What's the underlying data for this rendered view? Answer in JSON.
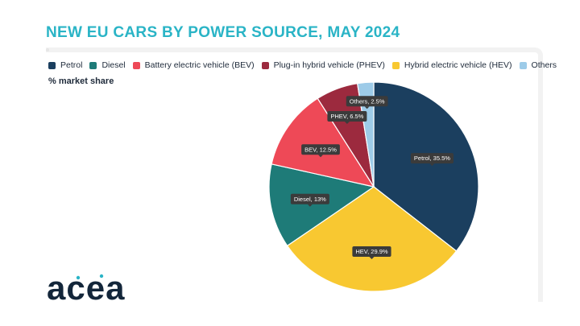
{
  "chart_data": {
    "type": "pie",
    "title": "NEW EU CARS BY POWER SOURCE, MAY 2024",
    "subtitle": "% market share",
    "unit": "%",
    "legend_position": "top",
    "slices": [
      {
        "name": "Petrol",
        "legend": "Petrol",
        "label": "Petrol, 35.5%",
        "value": 35.5,
        "color": "#1b3f5f"
      },
      {
        "name": "HEV",
        "legend": "Hybrid electric vehicle (HEV)",
        "label": "HEV, 29.9%",
        "value": 29.9,
        "color": "#f8c831"
      },
      {
        "name": "Diesel",
        "legend": "Diesel",
        "label": "Diesel, 13%",
        "value": 13,
        "color": "#1e7b78"
      },
      {
        "name": "BEV",
        "legend": "Battery electric vehicle (BEV)",
        "label": "BEV, 12.5%",
        "value": 12.5,
        "color": "#ee4957"
      },
      {
        "name": "PHEV",
        "legend": "Plug-in hybrid vehicle (PHEV)",
        "label": "PHEV, 6.5%",
        "value": 6.5,
        "color": "#9c2a3e"
      },
      {
        "name": "Others",
        "legend": "Others",
        "label": "Others, 2.5%",
        "value": 2.5,
        "color": "#9dcbe8"
      }
    ],
    "legend_order": [
      "Petrol",
      "Diesel",
      "BEV",
      "PHEV",
      "HEV",
      "Others"
    ]
  },
  "branding": {
    "logo_text": "acea"
  }
}
